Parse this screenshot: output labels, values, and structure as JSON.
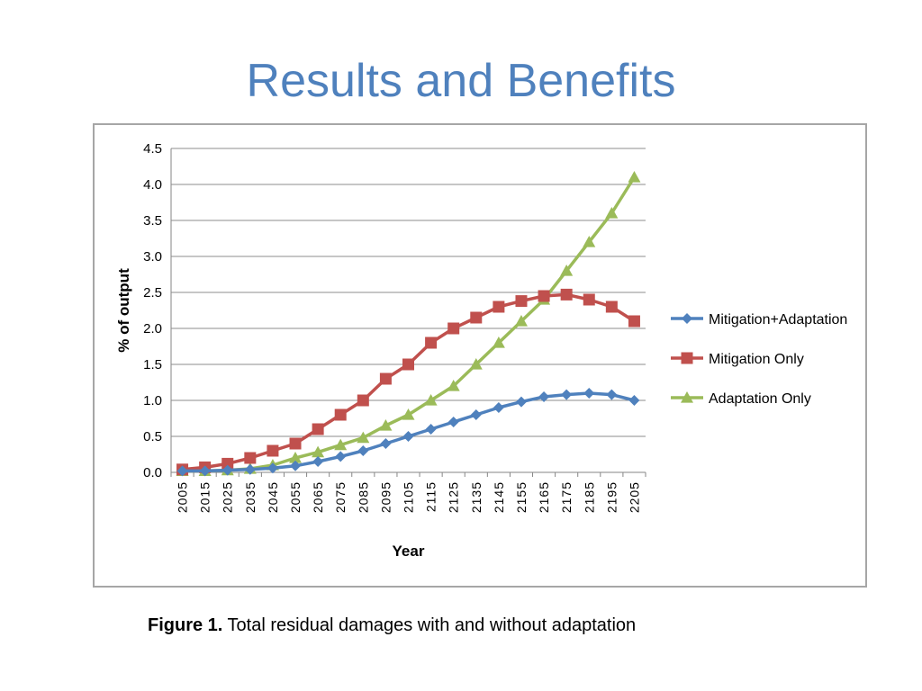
{
  "slide": {
    "title": "Results and Benefits"
  },
  "caption": {
    "label": "Figure 1.",
    "text": " Total residual damages with and without adaptation"
  },
  "chart_data": {
    "type": "line",
    "title": "",
    "xlabel": "Year",
    "ylabel": "% of output",
    "ylim": [
      0,
      4.5
    ],
    "yticks": [
      "0.0",
      "0.5",
      "1.0",
      "1.5",
      "2.0",
      "2.5",
      "3.0",
      "3.5",
      "4.0",
      "4.5"
    ],
    "grid": true,
    "legend_position": "right",
    "categories": [
      "2005",
      "2015",
      "2025",
      "2035",
      "2045",
      "2055",
      "2065",
      "2075",
      "2085",
      "2095",
      "2105",
      "2115",
      "2125",
      "2135",
      "2145",
      "2155",
      "2165",
      "2175",
      "2185",
      "2195",
      "2205"
    ],
    "series": [
      {
        "name": "Mitigation+Adaptation",
        "color": "#4F81BD",
        "marker": "diamond",
        "values": [
          0.02,
          0.02,
          0.03,
          0.04,
          0.06,
          0.09,
          0.15,
          0.22,
          0.3,
          0.4,
          0.5,
          0.6,
          0.7,
          0.8,
          0.9,
          0.98,
          1.05,
          1.08,
          1.1,
          1.08,
          1.0
        ]
      },
      {
        "name": "Mitigation Only",
        "color": "#C0504D",
        "marker": "square",
        "values": [
          0.04,
          0.07,
          0.12,
          0.2,
          0.3,
          0.4,
          0.6,
          0.8,
          1.0,
          1.3,
          1.5,
          1.8,
          2.0,
          2.15,
          2.3,
          2.38,
          2.45,
          2.47,
          2.4,
          2.3,
          2.1
        ]
      },
      {
        "name": "Adaptation Only",
        "color": "#9BBB59",
        "marker": "triangle",
        "values": [
          0.02,
          0.02,
          0.03,
          0.05,
          0.1,
          0.2,
          0.28,
          0.38,
          0.48,
          0.65,
          0.8,
          1.0,
          1.2,
          1.5,
          1.8,
          2.1,
          2.4,
          2.8,
          3.2,
          3.6,
          4.1
        ]
      }
    ]
  }
}
